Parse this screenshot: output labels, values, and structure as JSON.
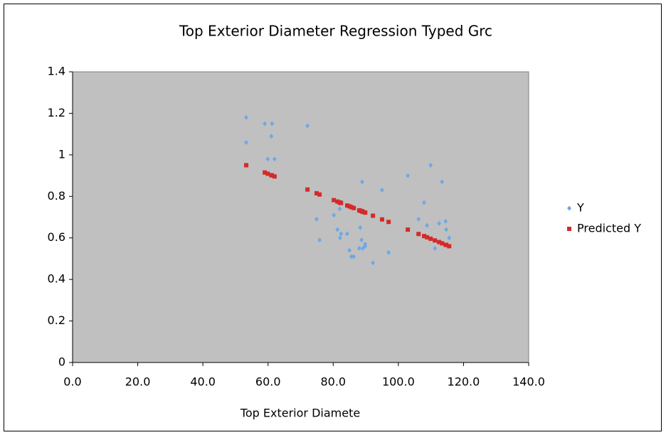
{
  "chart_data": {
    "type": "scatter",
    "title": "Top Exterior Diameter Regression Typed Grc",
    "x_label": "Top Exterior Diamete",
    "x": [
      53.3,
      53.3,
      59.0,
      61.2,
      61.0,
      59.9,
      62.0,
      72.1,
      74.9,
      75.8,
      80.2,
      81.3,
      82.1,
      82.4,
      82.0,
      84.3,
      85.0,
      85.6,
      86.3,
      88.0,
      88.3,
      88.9,
      88.7,
      89.1,
      89.8,
      89.8,
      92.2,
      95.0,
      97.0,
      102.9,
      106.2,
      107.9,
      108.8,
      109.9,
      111.2,
      112.5,
      113.4,
      114.5,
      114.7,
      115.6
    ],
    "series": [
      {
        "name": "Y",
        "color": "#6fa8e6",
        "marker": "diamond",
        "values": [
          1.18,
          1.06,
          1.15,
          1.15,
          1.09,
          0.98,
          0.98,
          1.14,
          0.69,
          0.59,
          0.71,
          0.64,
          0.6,
          0.62,
          0.74,
          0.62,
          0.54,
          0.51,
          0.51,
          0.55,
          0.65,
          0.87,
          0.59,
          0.55,
          0.56,
          0.57,
          0.48,
          0.83,
          0.53,
          0.9,
          0.69,
          0.77,
          0.66,
          0.95,
          0.55,
          0.67,
          0.87,
          0.68,
          0.64,
          0.6
        ]
      },
      {
        "name": "Predicted Y",
        "color": "#d42a2a",
        "marker": "square",
        "values": [
          0.95,
          0.95,
          0.915,
          0.901,
          0.902,
          0.909,
          0.896,
          0.833,
          0.815,
          0.809,
          0.782,
          0.775,
          0.77,
          0.768,
          0.771,
          0.756,
          0.752,
          0.748,
          0.744,
          0.733,
          0.731,
          0.727,
          0.729,
          0.726,
          0.722,
          0.722,
          0.707,
          0.689,
          0.677,
          0.64,
          0.619,
          0.609,
          0.603,
          0.596,
          0.588,
          0.58,
          0.574,
          0.567,
          0.566,
          0.56
        ]
      }
    ],
    "xlim": [
      0,
      140
    ],
    "xticks": [
      {
        "value": 0,
        "label": "0.0"
      },
      {
        "value": 20,
        "label": "20.0"
      },
      {
        "value": 40,
        "label": "40.0"
      },
      {
        "value": 60,
        "label": "60.0"
      },
      {
        "value": 80,
        "label": "80.0"
      },
      {
        "value": 100,
        "label": "100.0"
      },
      {
        "value": 120,
        "label": "120.0"
      },
      {
        "value": 140,
        "label": "140.0"
      }
    ],
    "ylim": [
      0,
      1.4
    ],
    "yticks": [
      0,
      0.2,
      0.4,
      0.6,
      0.8,
      1,
      1.2,
      1.4
    ],
    "plot_background": "#c0c0c0",
    "legend": "right"
  }
}
